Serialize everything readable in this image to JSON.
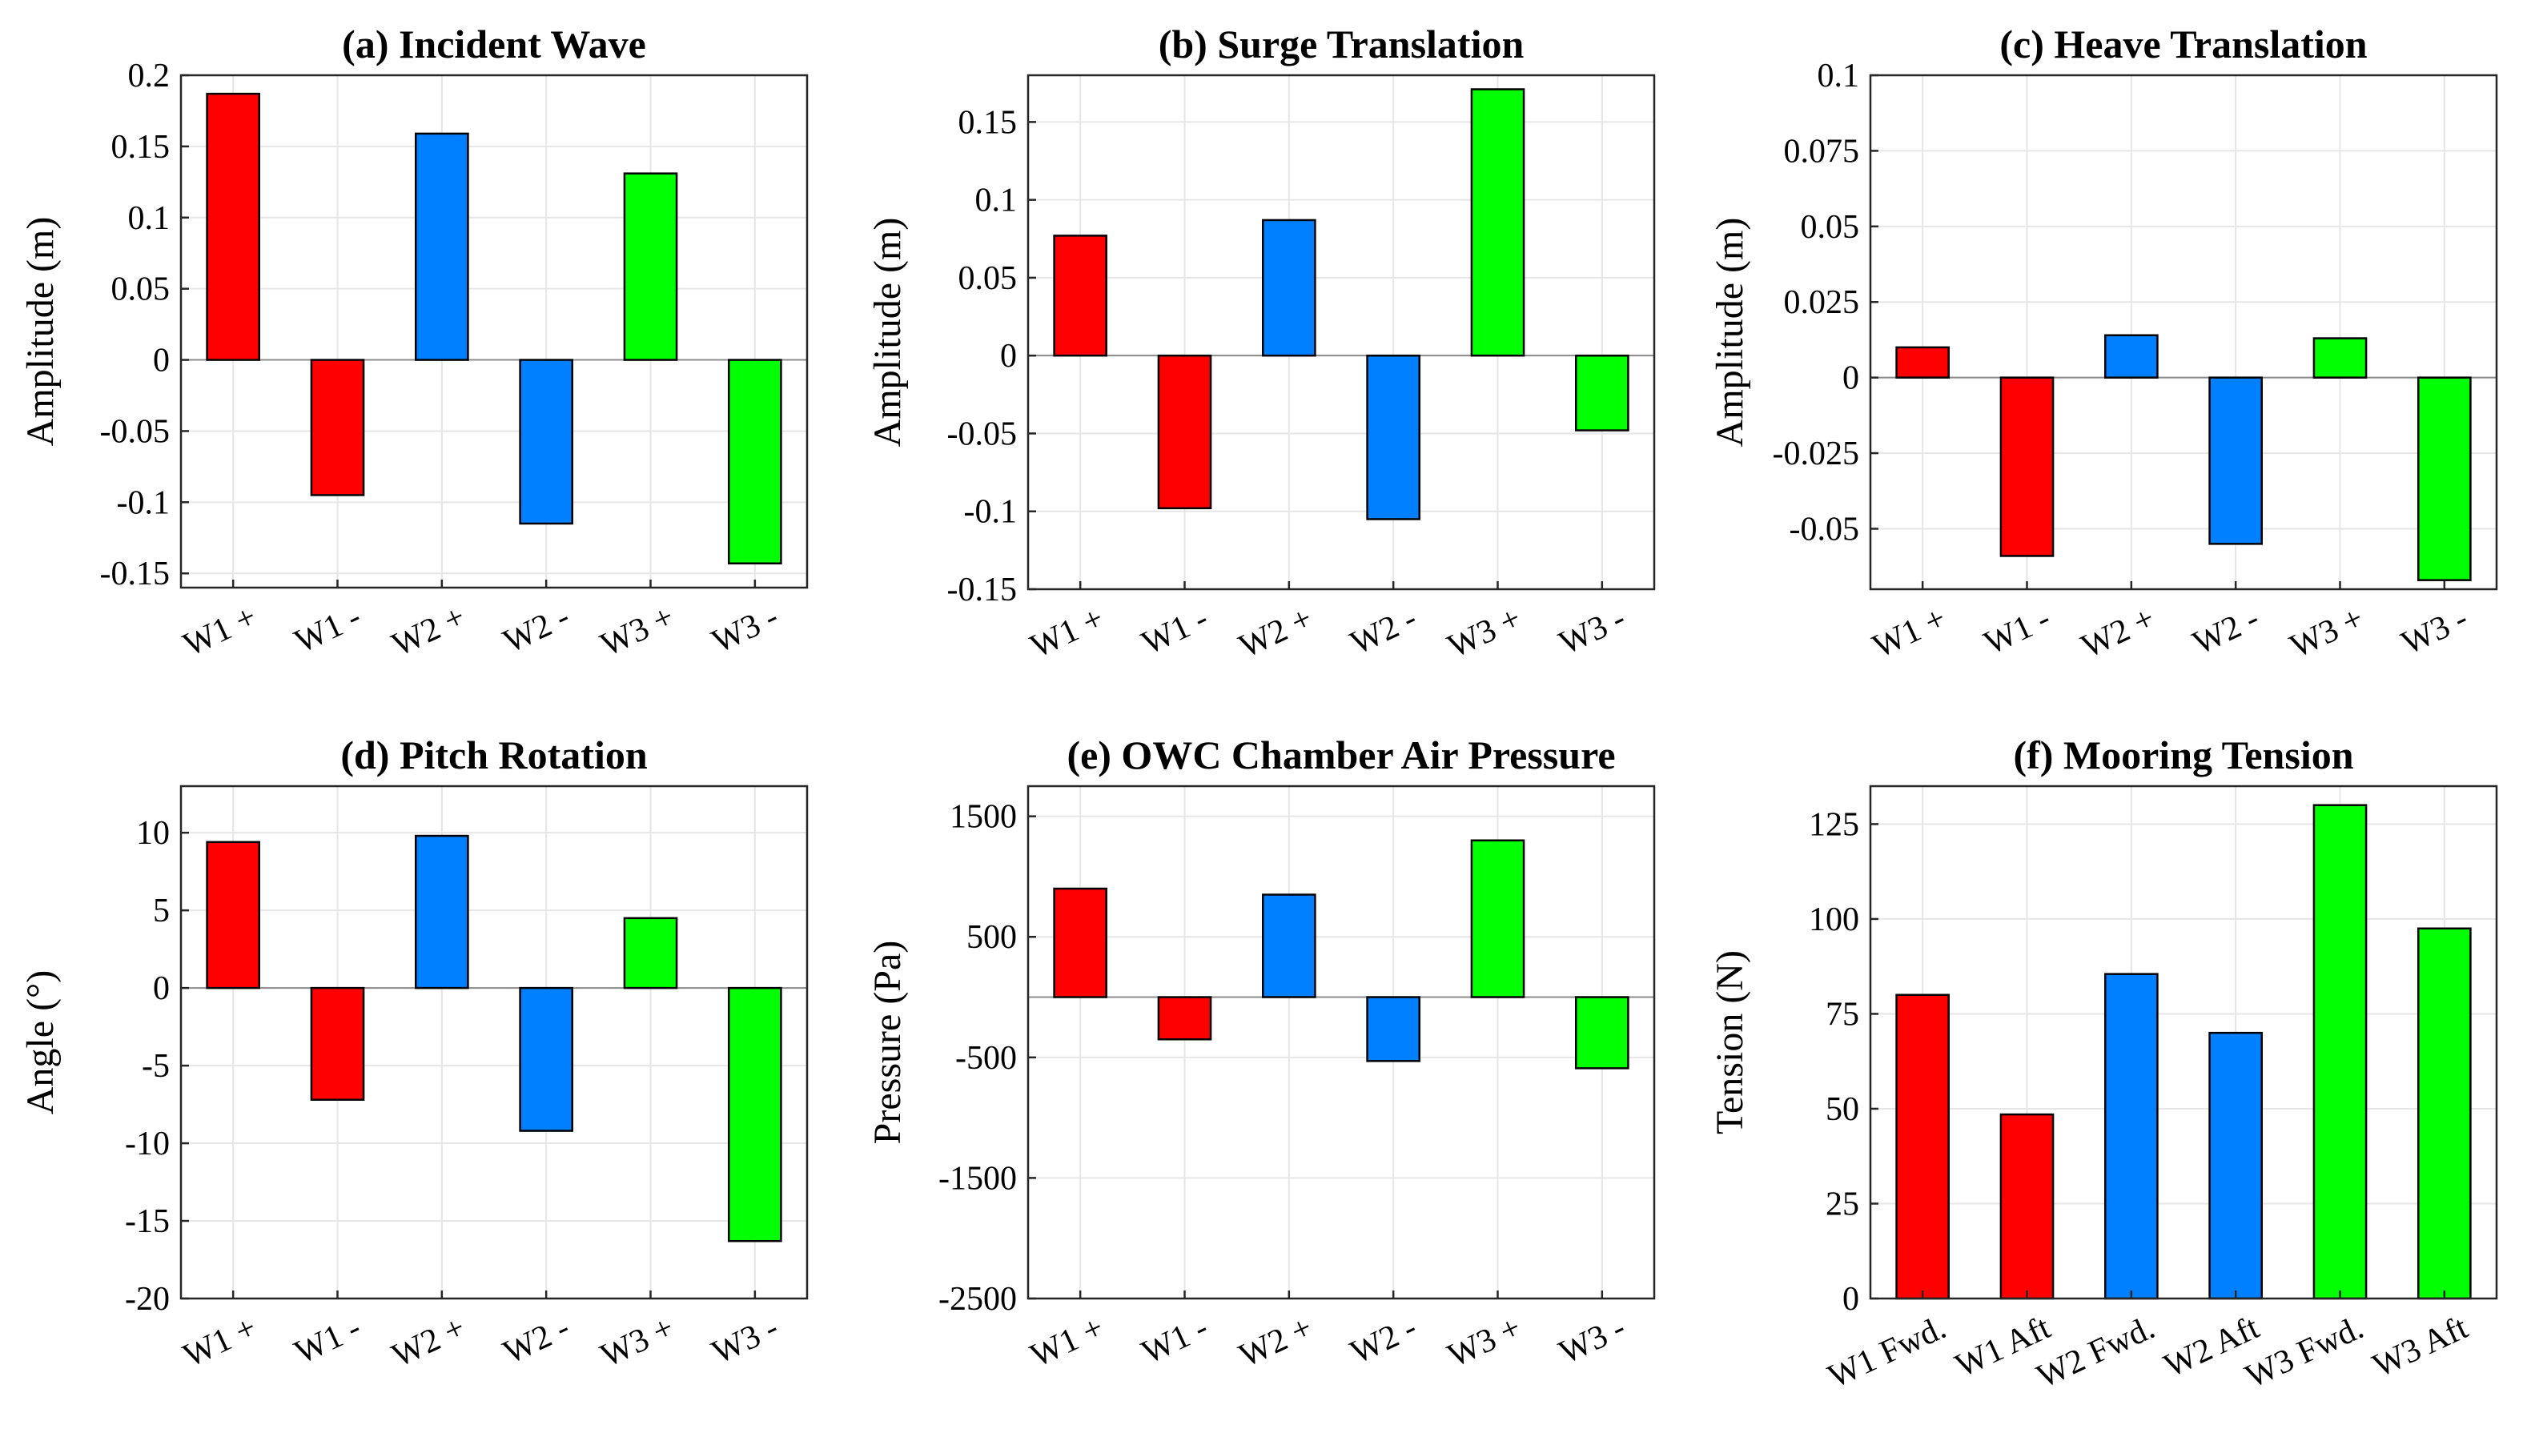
{
  "colors": {
    "W1": "#ff0000",
    "W2": "#0080ff",
    "W3": "#00ff00"
  },
  "chart_data": [
    {
      "type": "bar",
      "title": "(a) Incident Wave",
      "ylabel": "Amplitude (m)",
      "categories": [
        "W1 +",
        "W1 -",
        "W2 +",
        "W2 -",
        "W3 +",
        "W3 -"
      ],
      "values": [
        0.187,
        -0.095,
        0.159,
        -0.115,
        0.131,
        -0.143
      ],
      "bar_colors": [
        "W1",
        "W1",
        "W2",
        "W2",
        "W3",
        "W3"
      ],
      "ylim": [
        -0.16,
        0.2
      ],
      "yticks": [
        0.2,
        0.15,
        0.1,
        0.05,
        0,
        -0.05,
        -0.1,
        -0.15
      ],
      "yticklabels": [
        "0.2",
        "0.15",
        "0.1",
        "0.05",
        "0",
        "-0.05",
        "-0.1",
        "-0.15"
      ]
    },
    {
      "type": "bar",
      "title": "(b) Surge Translation",
      "ylabel": "Amplitude (m)",
      "categories": [
        "W1 +",
        "W1 -",
        "W2 +",
        "W2 -",
        "W3 +",
        "W3 -"
      ],
      "values": [
        0.077,
        -0.098,
        0.087,
        -0.105,
        0.171,
        -0.048
      ],
      "bar_colors": [
        "W1",
        "W1",
        "W2",
        "W2",
        "W3",
        "W3"
      ],
      "ylim": [
        -0.15,
        0.18
      ],
      "yticks": [
        0.15,
        0.1,
        0.05,
        0,
        -0.05,
        -0.1,
        -0.15
      ],
      "yticklabels": [
        "0.15",
        "0.1",
        "0.05",
        "0",
        "-0.05",
        "-0.1",
        "-0.15"
      ]
    },
    {
      "type": "bar",
      "title": "(c) Heave Translation",
      "ylabel": "Amplitude (m)",
      "categories": [
        "W1 +",
        "W1 -",
        "W2 +",
        "W2 -",
        "W3 +",
        "W3 -"
      ],
      "values": [
        0.01,
        -0.059,
        0.014,
        -0.055,
        0.013,
        -0.067
      ],
      "bar_colors": [
        "W1",
        "W1",
        "W2",
        "W2",
        "W3",
        "W3"
      ],
      "ylim": [
        -0.07,
        0.1
      ],
      "yticks": [
        0.1,
        0.075,
        0.05,
        0.025,
        0,
        -0.025,
        -0.05
      ],
      "yticklabels": [
        "0.1",
        "0.075",
        "0.05",
        "0.025",
        "0",
        "-0.025",
        "-0.05"
      ]
    },
    {
      "type": "bar",
      "title": "(d) Pitch Rotation",
      "ylabel": "Angle (°)",
      "categories": [
        "W1 +",
        "W1 -",
        "W2 +",
        "W2 -",
        "W3 +",
        "W3 -"
      ],
      "values": [
        9.4,
        -7.2,
        9.8,
        -9.2,
        4.5,
        -16.3
      ],
      "bar_colors": [
        "W1",
        "W1",
        "W2",
        "W2",
        "W3",
        "W3"
      ],
      "ylim": [
        -20,
        13
      ],
      "yticks": [
        10,
        5,
        0,
        -5,
        -10,
        -15,
        -20
      ],
      "yticklabels": [
        "10",
        "5",
        "0",
        "-5",
        "-10",
        "-15",
        "-20"
      ]
    },
    {
      "type": "bar",
      "title": "(e) OWC Chamber Air Pressure",
      "ylabel": "Pressure (Pa)",
      "categories": [
        "W1 +",
        "W1 -",
        "W2 +",
        "W2 -",
        "W3 +",
        "W3 -"
      ],
      "values": [
        900,
        -350,
        850,
        -530,
        1300,
        -590
      ],
      "bar_colors": [
        "W1",
        "W1",
        "W2",
        "W2",
        "W3",
        "W3"
      ],
      "ylim": [
        -2500,
        1750
      ],
      "yticks": [
        1500,
        500,
        -500,
        -1500,
        -2500
      ],
      "yticklabels": [
        "1500",
        "500",
        "-500",
        "-1500",
        "-2500"
      ]
    },
    {
      "type": "bar",
      "title": "(f) Mooring Tension",
      "ylabel": "Tension (N)",
      "categories": [
        "W1 Fwd.",
        "W1 Aft",
        "W2 Fwd.",
        "W2 Aft",
        "W3 Fwd.",
        "W3 Aft"
      ],
      "values": [
        80,
        48.5,
        85.5,
        70,
        130,
        97.5
      ],
      "bar_colors": [
        "W1",
        "W1",
        "W2",
        "W2",
        "W3",
        "W3"
      ],
      "ylim": [
        0,
        135
      ],
      "yticks": [
        125,
        100,
        75,
        50,
        25,
        0
      ],
      "yticklabels": [
        "125",
        "100",
        "75",
        "50",
        "25",
        "0"
      ]
    }
  ]
}
